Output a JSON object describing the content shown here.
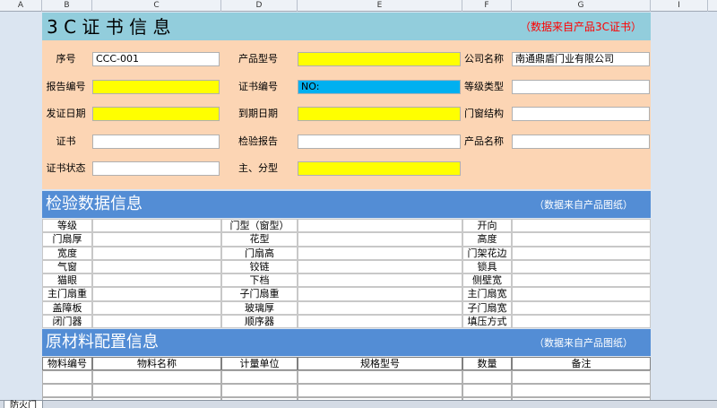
{
  "columns": [
    "A",
    "B",
    "C",
    "D",
    "E",
    "F",
    "G",
    "I"
  ],
  "title": "3 C 证 书 信 息",
  "title_note": "（数据来自产品3C证书）",
  "certificate": {
    "rows": [
      [
        {
          "label": "序号",
          "value": "CCC-001",
          "fill": "#ffffff"
        },
        {
          "label": "产品型号",
          "fill": "#ffff00"
        },
        {
          "label": "公司名称",
          "value": "南通鼎盾门业有限公司",
          "fill": "#ffffff"
        }
      ],
      [
        {
          "label": "报告编号",
          "fill": "#ffff00"
        },
        {
          "label": "证书编号",
          "value": "NO:",
          "fill": "#00b0f0"
        },
        {
          "label": "等级类型",
          "fill": "#ffffff"
        }
      ],
      [
        {
          "label": "发证日期",
          "fill": "#ffff00"
        },
        {
          "label": "到期日期",
          "fill": "#ffff00"
        },
        {
          "label": "门窗结构",
          "fill": "#ffffff"
        }
      ],
      [
        {
          "label": "证书",
          "fill": "#ffffff"
        },
        {
          "label": "检验报告",
          "fill": "#ffffff"
        },
        {
          "label": "产品名称",
          "fill": "#ffffff"
        }
      ],
      [
        {
          "label": "证书状态",
          "fill": "#ffffff"
        },
        {
          "label": "主、分型",
          "fill": "#ffff00"
        }
      ]
    ]
  },
  "inspection": {
    "title": "检验数据信息",
    "note": "（数据来自产品图纸）",
    "rows": [
      [
        "等级",
        "门型（窗型）",
        "开向"
      ],
      [
        "门扇厚",
        "花型",
        "高度"
      ],
      [
        "宽度",
        "门扇高",
        "门架花边"
      ],
      [
        "气窗",
        "铰链",
        "锁具"
      ],
      [
        "猫眼",
        "下档",
        "侧壁宽"
      ],
      [
        "主门扇重",
        "子门扇重",
        "主门扇宽"
      ],
      [
        "盖障板",
        "玻璃厚",
        "子门扇宽"
      ],
      [
        "闭门器",
        "顺序器",
        "填压方式"
      ]
    ]
  },
  "materials": {
    "title": "原材料配置信息",
    "note": "（数据来自产品图纸）",
    "headers": [
      "物料编号",
      "物料名称",
      "计量单位",
      "规格型号",
      "数量",
      "备注"
    ]
  },
  "sheet_tab": "防火门"
}
